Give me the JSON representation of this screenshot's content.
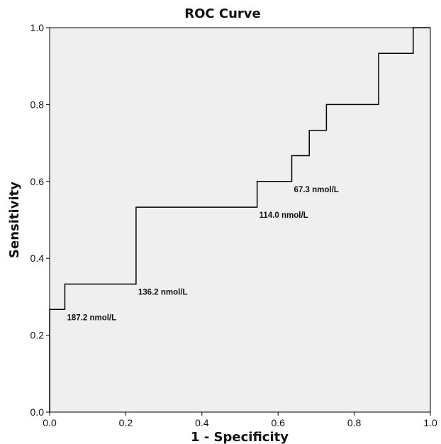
{
  "chart_data": {
    "type": "line",
    "step": true,
    "title": "ROC Curve",
    "xlabel": "1 - Specificity",
    "ylabel": "Sensitivity",
    "xlim": [
      0.0,
      1.0
    ],
    "ylim": [
      0.0,
      1.0
    ],
    "xticks": [
      "0.0",
      "0.2",
      "0.4",
      "0.6",
      "0.8",
      "1.0"
    ],
    "yticks": [
      "0.0",
      "0.2",
      "0.4",
      "0.6",
      "0.8",
      "1.0"
    ],
    "grid": false,
    "background_color": "#efefef",
    "line_color": "#000000",
    "series": [
      {
        "x": [
          0.0,
          0.0,
          0.04,
          0.04,
          0.227,
          0.227,
          0.545,
          0.545,
          0.636,
          0.636,
          0.682,
          0.682,
          0.727,
          0.727,
          0.864,
          0.864,
          0.955,
          0.955,
          1.0
        ],
        "y": [
          0.0,
          0.267,
          0.267,
          0.333,
          0.333,
          0.533,
          0.533,
          0.6,
          0.6,
          0.667,
          0.667,
          0.733,
          0.733,
          0.8,
          0.8,
          0.933,
          0.933,
          1.0,
          1.0
        ]
      }
    ],
    "annotations": [
      {
        "text": "187.2 nmol/L",
        "x": 0.04,
        "y": 0.267
      },
      {
        "text": "136.2 nmol/L",
        "x": 0.227,
        "y": 0.333
      },
      {
        "text": "114.0 nmol/L",
        "x": 0.545,
        "y": 0.533
      },
      {
        "text": "67.3 nmol/L",
        "x": 0.636,
        "y": 0.6
      }
    ]
  }
}
